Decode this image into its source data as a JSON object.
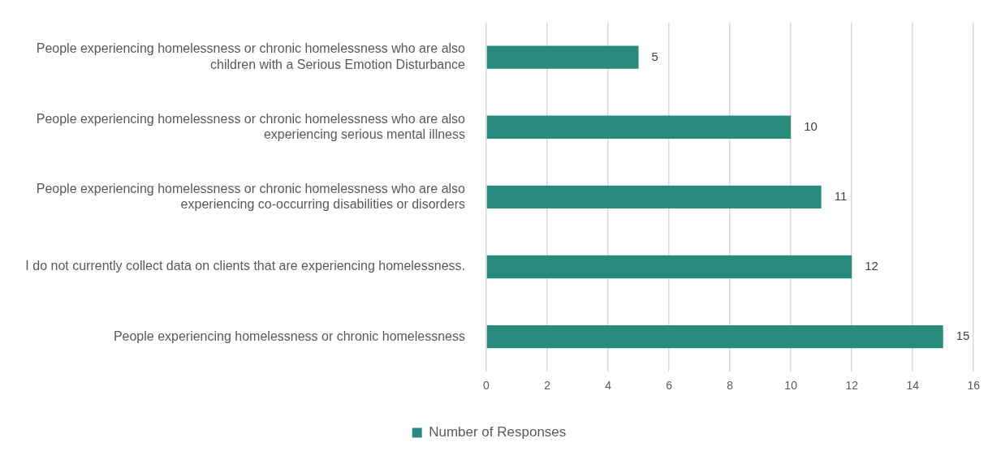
{
  "chart_data": {
    "type": "bar",
    "orientation": "horizontal",
    "categories": [
      "People experiencing homelessness or chronic homelessness who are also children with a Serious Emotion Disturbance",
      "People experiencing homelessness or chronic homelessness who are also experiencing serious mental illness",
      "People experiencing homelessness or chronic homelessness who are also experiencing co-occurring disabilities or disorders",
      "I do not currently collect data on clients that are experiencing homelessness.",
      "People experiencing homelessness or chronic homelessness"
    ],
    "series": [
      {
        "name": "Number of Responses",
        "color": "#278a7c",
        "values": [
          5,
          10,
          11,
          12,
          15
        ]
      }
    ],
    "xlim": [
      0,
      16
    ],
    "xticks": [
      0,
      2,
      4,
      6,
      8,
      10,
      12,
      14,
      16
    ],
    "grid": "x",
    "legend": "bottom",
    "data_labels": true
  }
}
